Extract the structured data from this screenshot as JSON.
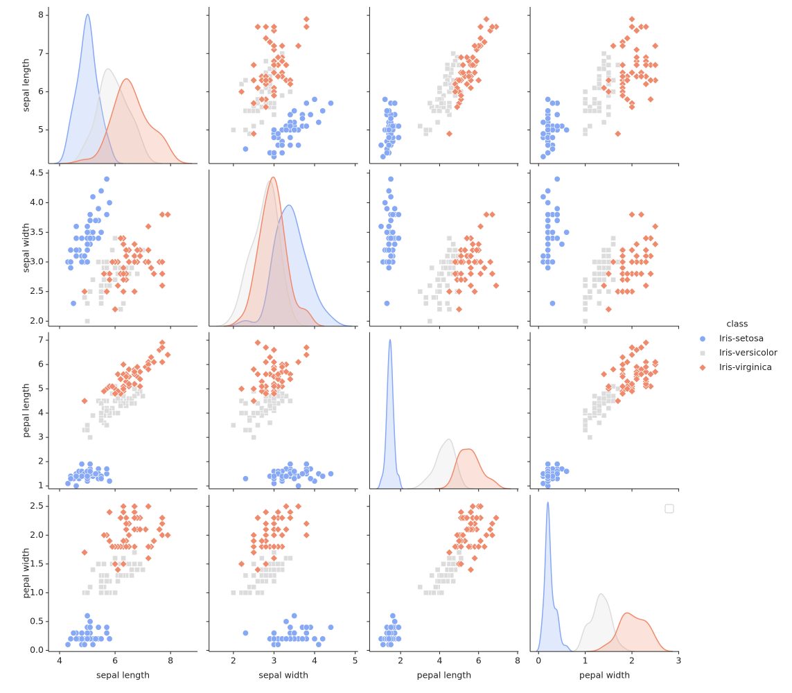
{
  "chart_data": {
    "type": "pairplot",
    "legend_title": "class",
    "legend": "right",
    "variables": [
      {
        "name": "sepal length",
        "xlim": [
          3.6,
          8.97
        ],
        "ylim": [
          4.12,
          8.22
        ],
        "xticks": [
          4,
          6,
          8
        ],
        "yticks": [
          5,
          6,
          7,
          8
        ]
      },
      {
        "name": "sepal width",
        "xlim": [
          1.4,
          5.07
        ],
        "ylim": [
          1.915,
          4.56
        ],
        "xticks": [
          2,
          3,
          4,
          5
        ],
        "yticks": [
          {
            "value": 2,
            "label": "2.0"
          },
          2.5,
          {
            "value": 3,
            "label": "3.0"
          },
          3.5,
          {
            "value": 4,
            "label": "4.0"
          },
          4.5
        ]
      },
      {
        "name": "pepal length",
        "xlim": [
          0.41,
          8.05
        ],
        "ylim": [
          0.88,
          7.33
        ],
        "xticks": [
          2,
          4,
          6,
          8
        ],
        "yticks": [
          1,
          2,
          3,
          4,
          5,
          6,
          7
        ]
      },
      {
        "name": "pepal width",
        "xlim": [
          -0.18,
          3.01
        ],
        "ylim": [
          -0.02,
          2.7
        ],
        "xticks": [
          0,
          1,
          2,
          3
        ],
        "yticks": [
          {
            "value": 0,
            "label": "0.0"
          },
          0.5,
          {
            "value": 1,
            "label": "1.0"
          },
          1.5,
          {
            "value": 2,
            "label": "2.0"
          },
          2.5
        ]
      }
    ],
    "series": [
      {
        "name": "Iris-setosa",
        "color": "#86a8f5",
        "marker": "circle",
        "values": [
          [
            5.1,
            4.9,
            4.7,
            4.6,
            5.0,
            5.4,
            4.6,
            5.0,
            4.4,
            4.9,
            5.4,
            4.8,
            4.8,
            4.3,
            5.8,
            5.7,
            5.4,
            5.1,
            5.7,
            5.1,
            5.4,
            5.1,
            4.6,
            5.1,
            4.8,
            5.0,
            5.0,
            5.2,
            5.2,
            4.7,
            4.8,
            5.4,
            5.2,
            5.5,
            4.9,
            5.0,
            5.5,
            4.9,
            4.4,
            5.1,
            5.0,
            4.5,
            4.4,
            5.0,
            5.1,
            4.8,
            5.1,
            4.6,
            5.3,
            5.0
          ],
          [
            3.5,
            3.0,
            3.2,
            3.1,
            3.6,
            3.9,
            3.4,
            3.4,
            2.9,
            3.1,
            3.7,
            3.4,
            3.0,
            3.0,
            4.0,
            4.4,
            3.9,
            3.5,
            3.8,
            3.8,
            3.4,
            3.7,
            3.6,
            3.3,
            3.4,
            3.0,
            3.4,
            3.5,
            3.4,
            3.2,
            3.1,
            3.4,
            4.1,
            4.2,
            3.1,
            3.2,
            3.5,
            3.1,
            3.0,
            3.4,
            3.5,
            2.3,
            3.2,
            3.5,
            3.8,
            3.0,
            3.8,
            3.2,
            3.7,
            3.3
          ],
          [
            1.4,
            1.4,
            1.3,
            1.5,
            1.4,
            1.7,
            1.4,
            1.5,
            1.4,
            1.5,
            1.5,
            1.6,
            1.4,
            1.1,
            1.2,
            1.5,
            1.3,
            1.4,
            1.7,
            1.5,
            1.7,
            1.5,
            1.0,
            1.7,
            1.9,
            1.6,
            1.6,
            1.5,
            1.4,
            1.6,
            1.6,
            1.5,
            1.5,
            1.4,
            1.5,
            1.2,
            1.3,
            1.5,
            1.3,
            1.5,
            1.3,
            1.3,
            1.3,
            1.6,
            1.9,
            1.4,
            1.6,
            1.4,
            1.5,
            1.4
          ],
          [
            0.2,
            0.2,
            0.2,
            0.2,
            0.2,
            0.4,
            0.3,
            0.2,
            0.2,
            0.1,
            0.2,
            0.2,
            0.1,
            0.1,
            0.2,
            0.4,
            0.4,
            0.3,
            0.3,
            0.3,
            0.2,
            0.4,
            0.2,
            0.5,
            0.2,
            0.2,
            0.4,
            0.2,
            0.2,
            0.2,
            0.2,
            0.4,
            0.1,
            0.2,
            0.1,
            0.2,
            0.2,
            0.1,
            0.2,
            0.2,
            0.3,
            0.3,
            0.2,
            0.6,
            0.4,
            0.3,
            0.2,
            0.2,
            0.2,
            0.2
          ]
        ]
      },
      {
        "name": "Iris-versicolor",
        "color": "#dddcdc",
        "marker": "square",
        "values": [
          [
            7.0,
            6.4,
            6.9,
            5.5,
            6.5,
            5.7,
            6.3,
            4.9,
            6.6,
            5.2,
            5.0,
            5.9,
            6.0,
            6.1,
            5.6,
            6.7,
            5.6,
            5.8,
            6.2,
            5.6,
            5.9,
            6.1,
            6.3,
            6.1,
            6.4,
            6.6,
            6.8,
            6.7,
            6.0,
            5.7,
            5.5,
            5.5,
            5.8,
            6.0,
            5.4,
            6.0,
            6.7,
            6.3,
            5.6,
            5.5,
            5.5,
            6.1,
            5.8,
            5.0,
            5.6,
            5.7,
            5.7,
            6.2,
            5.1,
            5.7
          ],
          [
            3.2,
            3.2,
            3.1,
            2.3,
            2.8,
            2.8,
            3.3,
            2.4,
            2.9,
            2.7,
            2.0,
            3.0,
            2.2,
            2.9,
            2.9,
            3.1,
            3.0,
            2.7,
            2.2,
            2.5,
            3.2,
            2.8,
            2.5,
            2.8,
            2.9,
            3.0,
            2.8,
            3.0,
            2.9,
            2.6,
            2.4,
            2.4,
            2.7,
            2.7,
            3.0,
            3.4,
            3.1,
            2.3,
            3.0,
            2.5,
            2.6,
            3.0,
            2.6,
            2.3,
            2.7,
            3.0,
            2.9,
            2.9,
            2.5,
            2.8
          ],
          [
            4.7,
            4.5,
            4.9,
            4.0,
            4.6,
            4.5,
            4.7,
            3.3,
            4.6,
            3.9,
            3.5,
            4.2,
            4.0,
            4.7,
            3.6,
            4.4,
            4.5,
            4.1,
            4.5,
            3.9,
            4.8,
            4.0,
            4.9,
            4.7,
            4.3,
            4.4,
            4.8,
            5.0,
            4.5,
            3.5,
            3.8,
            3.7,
            3.9,
            5.1,
            4.5,
            4.5,
            4.7,
            4.4,
            4.1,
            4.0,
            4.4,
            4.6,
            4.0,
            3.3,
            4.2,
            4.2,
            4.2,
            4.3,
            3.0,
            4.1
          ],
          [
            1.4,
            1.5,
            1.5,
            1.3,
            1.5,
            1.3,
            1.6,
            1.0,
            1.3,
            1.4,
            1.0,
            1.5,
            1.0,
            1.4,
            1.3,
            1.4,
            1.5,
            1.0,
            1.5,
            1.1,
            1.8,
            1.3,
            1.5,
            1.2,
            1.3,
            1.4,
            1.4,
            1.7,
            1.5,
            1.0,
            1.1,
            1.0,
            1.2,
            1.6,
            1.5,
            1.6,
            1.5,
            1.3,
            1.3,
            1.3,
            1.2,
            1.4,
            1.2,
            1.0,
            1.3,
            1.2,
            1.3,
            1.3,
            1.1,
            1.3
          ]
        ]
      },
      {
        "name": "Iris-virginica",
        "color": "#ef8a6c",
        "marker": "diamond",
        "values": [
          [
            6.3,
            5.8,
            7.1,
            6.3,
            6.5,
            7.6,
            4.9,
            7.3,
            6.7,
            7.2,
            6.5,
            6.4,
            6.8,
            5.7,
            5.8,
            6.4,
            6.5,
            7.7,
            7.7,
            6.0,
            6.9,
            5.6,
            7.7,
            6.3,
            6.7,
            7.2,
            6.2,
            6.1,
            6.4,
            7.2,
            7.4,
            7.9,
            6.4,
            6.3,
            6.1,
            7.7,
            6.3,
            6.4,
            6.0,
            6.9,
            6.7,
            6.9,
            5.8,
            6.8,
            6.7,
            6.7,
            6.3,
            6.5,
            6.2,
            5.9
          ],
          [
            3.3,
            2.7,
            3.0,
            2.9,
            3.0,
            3.0,
            2.5,
            2.9,
            2.5,
            3.6,
            3.2,
            2.7,
            3.0,
            2.5,
            2.8,
            3.2,
            3.0,
            3.8,
            2.6,
            2.2,
            3.2,
            2.8,
            2.8,
            2.7,
            3.3,
            3.2,
            2.8,
            3.0,
            2.8,
            3.0,
            2.8,
            3.8,
            2.8,
            2.8,
            2.6,
            3.0,
            3.4,
            3.1,
            3.0,
            3.1,
            3.1,
            3.1,
            2.7,
            3.2,
            3.3,
            3.0,
            2.5,
            3.0,
            3.4,
            3.0
          ],
          [
            6.0,
            5.1,
            5.9,
            5.6,
            5.8,
            6.6,
            4.5,
            6.3,
            5.8,
            6.1,
            5.1,
            5.3,
            5.5,
            5.0,
            5.1,
            5.3,
            5.5,
            6.7,
            6.9,
            5.0,
            5.7,
            4.9,
            6.7,
            4.9,
            5.7,
            6.0,
            4.8,
            4.9,
            5.6,
            5.8,
            6.1,
            6.4,
            5.6,
            5.1,
            5.6,
            6.1,
            5.6,
            5.5,
            4.8,
            5.4,
            5.6,
            5.1,
            5.1,
            5.9,
            5.7,
            5.2,
            5.0,
            5.2,
            5.4,
            5.1
          ],
          [
            2.5,
            1.9,
            2.1,
            1.8,
            2.2,
            2.1,
            1.7,
            1.8,
            1.8,
            2.5,
            2.0,
            1.9,
            2.1,
            2.0,
            2.4,
            2.3,
            1.8,
            2.2,
            2.3,
            1.5,
            2.3,
            2.0,
            2.0,
            1.8,
            2.1,
            1.8,
            1.8,
            1.8,
            2.1,
            1.6,
            1.9,
            2.0,
            2.2,
            1.5,
            1.4,
            2.3,
            2.4,
            1.8,
            1.8,
            2.1,
            2.4,
            2.3,
            1.9,
            2.3,
            2.5,
            2.3,
            1.9,
            2.0,
            2.3,
            1.8
          ]
        ]
      }
    ]
  }
}
